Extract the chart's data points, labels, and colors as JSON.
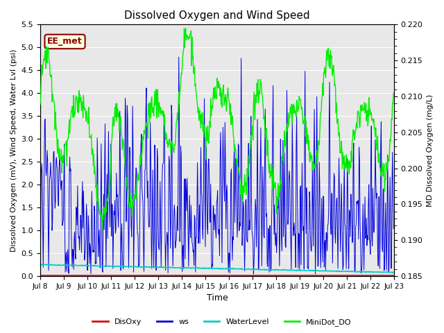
{
  "title": "Dissolved Oxygen and Wind Speed",
  "xlabel": "Time",
  "ylabel_left": "Dissolved Oxygen (mV), Wind Speed, Water Lvl (psi)",
  "ylabel_right": "MD Dissolved Oxygen (mg/L)",
  "ylim_left": [
    0,
    5.5
  ],
  "ylim_right": [
    0.185,
    0.22
  ],
  "yticks_left": [
    0.0,
    0.5,
    1.0,
    1.5,
    2.0,
    2.5,
    3.0,
    3.5,
    4.0,
    4.5,
    5.0,
    5.5
  ],
  "yticks_right": [
    0.185,
    0.19,
    0.195,
    0.2,
    0.205,
    0.21,
    0.215,
    0.22
  ],
  "xtick_labels": [
    "Jul 8",
    "Jul 9",
    "Jul 10",
    "Jul 11",
    "Jul 12",
    "Jul 13",
    "Jul 14",
    "Jul 15",
    "Jul 16",
    "Jul 17",
    "Jul 18",
    "Jul 19",
    "Jul 20",
    "Jul 21",
    "Jul 22",
    "Jul 23"
  ],
  "annotation": "EE_met",
  "legend_labels": [
    "DisOxy",
    "ws",
    "WaterLevel",
    "MiniDot_DO"
  ],
  "legend_colors": [
    "#dd0000",
    "#0000dd",
    "#00cccc",
    "#00ee00"
  ],
  "bg_color": "#e8e8e8",
  "grid_color": "#ffffff",
  "figsize": [
    6.4,
    4.8
  ],
  "dpi": 100
}
